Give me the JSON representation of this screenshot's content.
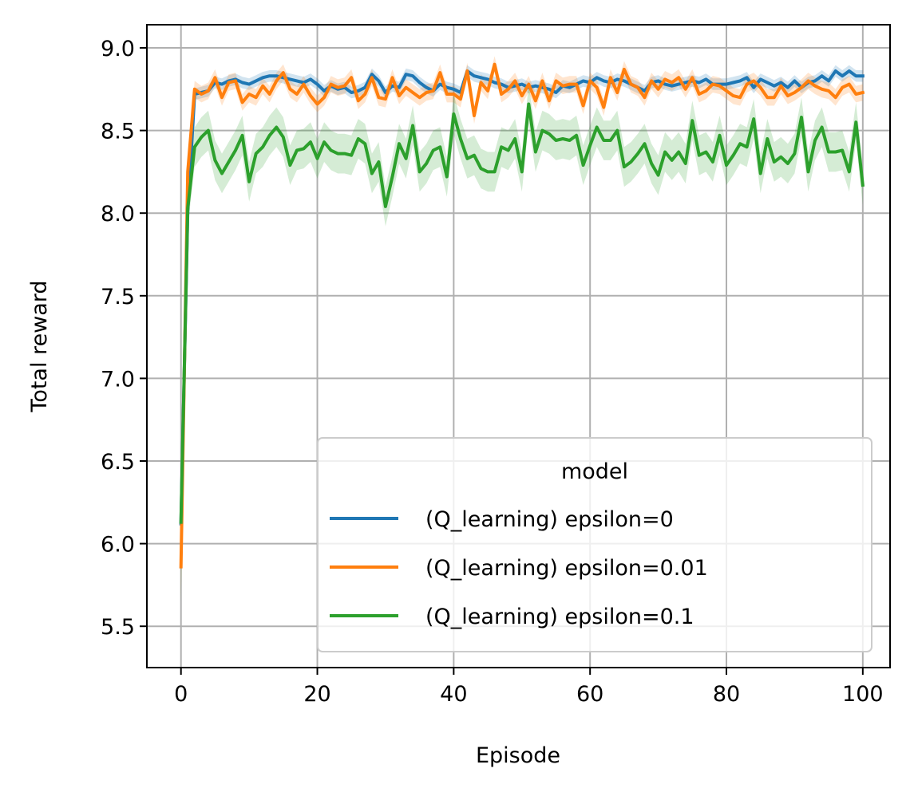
{
  "chart_data": {
    "type": "line",
    "title": "",
    "xlabel": "Episode",
    "ylabel": "Total reward",
    "xlim": [
      -5,
      104
    ],
    "ylim": [
      5.25,
      9.14
    ],
    "xticks": [
      0,
      20,
      40,
      60,
      80,
      100
    ],
    "xtick_labels": [
      "0",
      "20",
      "40",
      "60",
      "80",
      "100"
    ],
    "yticks": [
      5.5,
      6.0,
      6.5,
      7.0,
      7.5,
      8.0,
      8.5,
      9.0
    ],
    "ytick_labels": [
      "5.5",
      "6.0",
      "6.5",
      "7.0",
      "7.5",
      "8.0",
      "8.5",
      "9.0"
    ],
    "grid": true,
    "legend": {
      "title": "model",
      "placement": "lower right"
    },
    "x_start": 0,
    "x_step": 1,
    "series": [
      {
        "name": "(Q_learning) epsilon=0",
        "color": "#1f77b4",
        "values": [
          6.12,
          8.01,
          8.72,
          8.73,
          8.74,
          8.79,
          8.78,
          8.8,
          8.81,
          8.79,
          8.78,
          8.8,
          8.82,
          8.83,
          8.83,
          8.82,
          8.81,
          8.8,
          8.79,
          8.81,
          8.78,
          8.74,
          8.77,
          8.75,
          8.76,
          8.73,
          8.74,
          8.76,
          8.84,
          8.8,
          8.73,
          8.77,
          8.76,
          8.84,
          8.83,
          8.79,
          8.76,
          8.74,
          8.78,
          8.76,
          8.75,
          8.73,
          8.86,
          8.83,
          8.82,
          8.81,
          8.79,
          8.78,
          8.76,
          8.77,
          8.78,
          8.76,
          8.77,
          8.76,
          8.75,
          8.73,
          8.77,
          8.76,
          8.78,
          8.8,
          8.79,
          8.82,
          8.8,
          8.79,
          8.81,
          8.8,
          8.78,
          8.76,
          8.74,
          8.79,
          8.8,
          8.78,
          8.77,
          8.78,
          8.79,
          8.8,
          8.79,
          8.81,
          8.78,
          8.78,
          8.78,
          8.79,
          8.8,
          8.82,
          8.76,
          8.81,
          8.79,
          8.77,
          8.79,
          8.76,
          8.8,
          8.76,
          8.79,
          8.8,
          8.83,
          8.8,
          8.86,
          8.83,
          8.86,
          8.83,
          8.83
        ]
      },
      {
        "name": "(Q_learning) epsilon=0.01",
        "color": "#ff7f0e",
        "values": [
          5.86,
          8.25,
          8.75,
          8.72,
          8.74,
          8.82,
          8.7,
          8.79,
          8.8,
          8.67,
          8.72,
          8.7,
          8.77,
          8.72,
          8.8,
          8.85,
          8.75,
          8.72,
          8.78,
          8.71,
          8.66,
          8.7,
          8.78,
          8.76,
          8.77,
          8.82,
          8.68,
          8.72,
          8.82,
          8.7,
          8.69,
          8.82,
          8.71,
          8.76,
          8.73,
          8.7,
          8.73,
          8.74,
          8.85,
          8.72,
          8.72,
          8.69,
          8.86,
          8.59,
          8.79,
          8.74,
          8.9,
          8.72,
          8.75,
          8.8,
          8.71,
          8.78,
          8.68,
          8.8,
          8.68,
          8.8,
          8.77,
          8.78,
          8.78,
          8.65,
          8.8,
          8.76,
          8.64,
          8.82,
          8.73,
          8.87,
          8.78,
          8.76,
          8.7,
          8.8,
          8.75,
          8.81,
          8.79,
          8.82,
          8.75,
          8.82,
          8.72,
          8.74,
          8.78,
          8.77,
          8.74,
          8.71,
          8.7,
          8.78,
          8.8,
          8.76,
          8.7,
          8.7,
          8.77,
          8.71,
          8.73,
          8.76,
          8.8,
          8.77,
          8.75,
          8.74,
          8.7,
          8.76,
          8.78,
          8.72,
          8.73
        ]
      },
      {
        "name": "(Q_learning) epsilon=0.1",
        "color": "#2ca02c",
        "values": [
          6.13,
          8.03,
          8.4,
          8.46,
          8.5,
          8.32,
          8.24,
          8.31,
          8.38,
          8.47,
          8.19,
          8.36,
          8.4,
          8.47,
          8.52,
          8.46,
          8.29,
          8.38,
          8.39,
          8.43,
          8.33,
          8.43,
          8.38,
          8.36,
          8.36,
          8.35,
          8.45,
          8.42,
          8.24,
          8.31,
          8.04,
          8.22,
          8.42,
          8.33,
          8.53,
          8.25,
          8.3,
          8.38,
          8.4,
          8.22,
          8.6,
          8.45,
          8.33,
          8.35,
          8.27,
          8.25,
          8.25,
          8.4,
          8.38,
          8.45,
          8.25,
          8.66,
          8.37,
          8.5,
          8.48,
          8.44,
          8.45,
          8.44,
          8.47,
          8.29,
          8.41,
          8.52,
          8.44,
          8.44,
          8.5,
          8.28,
          8.31,
          8.36,
          8.42,
          8.3,
          8.23,
          8.37,
          8.32,
          8.37,
          8.3,
          8.56,
          8.35,
          8.37,
          8.31,
          8.47,
          8.29,
          8.35,
          8.42,
          8.4,
          8.57,
          8.24,
          8.45,
          8.31,
          8.34,
          8.3,
          8.36,
          8.58,
          8.25,
          8.44,
          8.52,
          8.37,
          8.37,
          8.38,
          8.25,
          8.55,
          8.17
        ]
      }
    ]
  }
}
